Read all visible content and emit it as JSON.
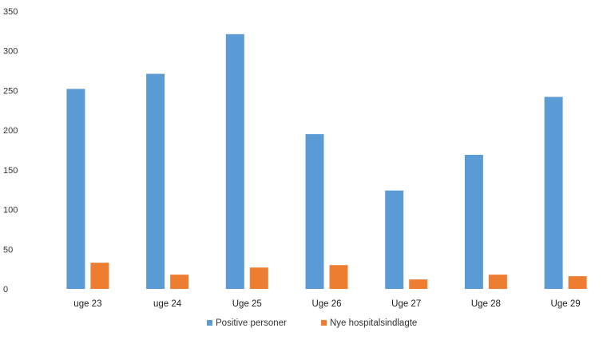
{
  "chart_data": {
    "type": "bar",
    "title": "",
    "xlabel": "",
    "ylabel": "",
    "ylim": [
      0,
      350
    ],
    "yticks": [
      0,
      50,
      100,
      150,
      200,
      250,
      300,
      350
    ],
    "grid": false,
    "legend_position": "bottom",
    "categories": [
      "uge 23",
      "uge 24",
      "Uge 25",
      "Uge 26",
      "Uge 27",
      "Uge 28",
      "Uge 29"
    ],
    "series": [
      {
        "name": "Positive personer",
        "color": "#5b9bd5",
        "values": [
          252,
          271,
          321,
          195,
          124,
          169,
          242
        ]
      },
      {
        "name": "Nye hospitalsindlagte",
        "color": "#ed7d31",
        "values": [
          33,
          18,
          27,
          30,
          12,
          18,
          16
        ]
      }
    ]
  }
}
